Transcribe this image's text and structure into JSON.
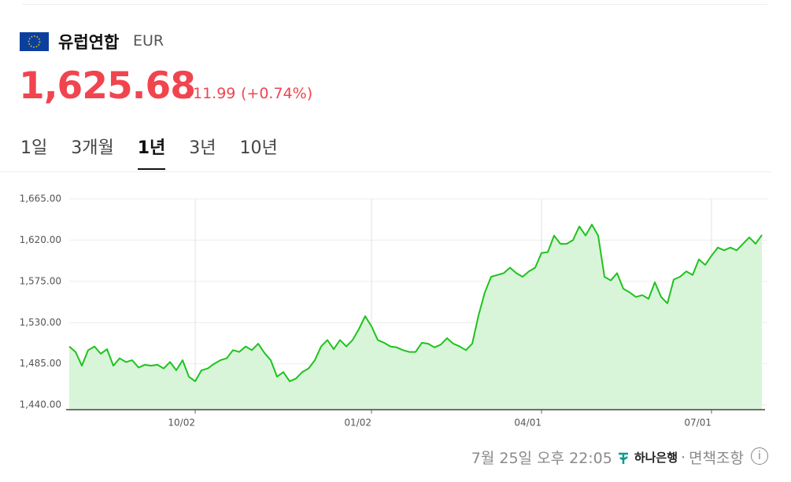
{
  "header": {
    "name": "유럽연합",
    "code": "EUR",
    "price": "1,625.68",
    "change": "11.99",
    "change_percent": "(+0.74%)"
  },
  "tabs": {
    "items": [
      "1일",
      "3개월",
      "1년",
      "3년",
      "10년"
    ],
    "selected": 2
  },
  "chart_data": {
    "type": "area",
    "color": "#1ec31e",
    "fill": "#d9f5d9",
    "grid": true,
    "series": [
      {
        "name": "EUR",
        "values": [
          1504,
          1498,
          1483,
          1500,
          1504,
          1496,
          1501,
          1483,
          1491,
          1487,
          1489,
          1481,
          1484,
          1483,
          1484,
          1480,
          1487,
          1478,
          1489,
          1471,
          1466,
          1478,
          1480,
          1485,
          1489,
          1491,
          1500,
          1498,
          1504,
          1500,
          1507,
          1497,
          1489,
          1471,
          1476,
          1466,
          1469,
          1476,
          1480,
          1489,
          1504,
          1511,
          1501,
          1511,
          1504,
          1511,
          1523,
          1537,
          1526,
          1511,
          1508,
          1504,
          1503,
          1500,
          1498,
          1498,
          1508,
          1507,
          1503,
          1506,
          1513,
          1507,
          1504,
          1500,
          1507,
          1538,
          1563,
          1580,
          1582,
          1584,
          1590,
          1584,
          1580,
          1586,
          1590,
          1606,
          1607,
          1625,
          1616,
          1616,
          1620,
          1635,
          1625,
          1637,
          1625,
          1580,
          1576,
          1584,
          1567,
          1563,
          1558,
          1560,
          1556,
          1574,
          1558,
          1551,
          1577,
          1580,
          1586,
          1582,
          1599,
          1593,
          1603,
          1612,
          1609,
          1612,
          1609,
          1616,
          1623,
          1616,
          1625.68
        ]
      }
    ],
    "xlim": [
      0,
      110
    ],
    "xticks": [
      {
        "value": 20,
        "label": "10/02"
      },
      {
        "value": 48,
        "label": "01/02"
      },
      {
        "value": 75,
        "label": "04/01"
      },
      {
        "value": 102,
        "label": "07/01"
      }
    ],
    "ylim": [
      1435,
      1665
    ],
    "yticks": [
      {
        "value": 1440,
        "label": "1,440.00"
      },
      {
        "value": 1485,
        "label": "1,485.00"
      },
      {
        "value": 1530,
        "label": "1,530.00"
      },
      {
        "value": 1575,
        "label": "1,575.00"
      },
      {
        "value": 1620,
        "label": "1,620.00"
      },
      {
        "value": 1665,
        "label": "1,665.00"
      }
    ]
  },
  "footer": {
    "timestamp": "7월 25일 오후 22:05",
    "source": "하나은행",
    "separator": "·",
    "disclaimer": "면책조항"
  }
}
